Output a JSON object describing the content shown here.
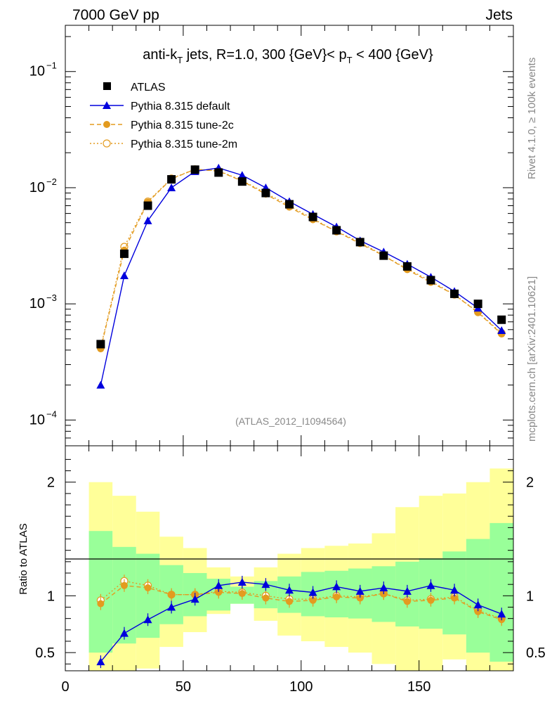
{
  "header": {
    "left": "7000 GeV pp",
    "right": "Jets"
  },
  "side_labels": {
    "rivet": "Rivet 4.1.0, ≥ 100k events",
    "mcplots": "mcplots.cern.ch [arXiv:2401.10621]"
  },
  "watermark": "(ATLAS_2012_I1094564)",
  "colors": {
    "atlas": "#000000",
    "default": "#0000dd",
    "tune": "#e39b1f",
    "band_green": "#99ff99",
    "band_yellow": "#ffff99"
  },
  "chart_data": [
    {
      "type": "line",
      "panel": "main",
      "title": {
        "prefix": "anti-k",
        "prefix_sub": "T",
        "middle": " jets, R=1.0, 300 {GeV}< p",
        "middle_sub": "T",
        "suffix": " < 400 {GeV}"
      },
      "yscale": "log",
      "ylim": [
        6e-05,
        0.25
      ],
      "xlim": [
        0,
        190
      ],
      "y_ticks": [
        {
          "value": 0.1,
          "base": "10",
          "exp": "−1"
        },
        {
          "value": 0.01,
          "base": "10",
          "exp": "−2"
        },
        {
          "value": 0.001,
          "base": "10",
          "exp": "−3"
        },
        {
          "value": 0.0001,
          "base": "10",
          "exp": "−4"
        }
      ],
      "legend": [
        {
          "key": "atlas",
          "label": "ATLAS"
        },
        {
          "key": "default",
          "label": "Pythia 8.315 default"
        },
        {
          "key": "tune2c",
          "label": "Pythia 8.315 tune-2c"
        },
        {
          "key": "tune2m",
          "label": "Pythia 8.315 tune-2m"
        }
      ],
      "x": [
        15,
        25,
        35,
        45,
        55,
        65,
        75,
        85,
        95,
        105,
        115,
        125,
        135,
        145,
        155,
        165,
        175,
        185
      ],
      "series": [
        {
          "key": "atlas",
          "name": "ATLAS",
          "values": [
            0.00045,
            0.0027,
            0.007,
            0.0118,
            0.0143,
            0.0135,
            0.0113,
            0.009,
            0.0072,
            0.0056,
            0.0043,
            0.0034,
            0.0026,
            0.0021,
            0.0016,
            0.00122,
            0.001,
            0.00073
          ]
        },
        {
          "key": "default",
          "name": "Pythia 8.315 default",
          "values": [
            0.0002,
            0.00175,
            0.0052,
            0.01,
            0.0138,
            0.0148,
            0.0128,
            0.01,
            0.0076,
            0.0059,
            0.0046,
            0.0035,
            0.0028,
            0.0022,
            0.0017,
            0.00128,
            0.00092,
            0.00059
          ]
        },
        {
          "key": "tune2c",
          "name": "Pythia 8.315 tune-2c",
          "values": [
            0.00041,
            0.0029,
            0.0075,
            0.0119,
            0.0144,
            0.0139,
            0.0114,
            0.0088,
            0.0068,
            0.0053,
            0.0042,
            0.0033,
            0.0026,
            0.00197,
            0.00153,
            0.0012,
            0.00084,
            0.00055
          ]
        },
        {
          "key": "tune2m",
          "name": "Pythia 8.315 tune-2m",
          "values": [
            0.00042,
            0.0031,
            0.0076,
            0.012,
            0.0144,
            0.014,
            0.0115,
            0.009,
            0.007,
            0.0054,
            0.0042,
            0.0034,
            0.0026,
            0.002,
            0.00157,
            0.0012,
            0.00085,
            0.00056
          ]
        }
      ]
    },
    {
      "type": "line",
      "panel": "ratio",
      "ylabel": "Ratio to ATLAS",
      "ylim": [
        0.34,
        2.32
      ],
      "xlim": [
        0,
        190
      ],
      "y_ticks": [
        0.5,
        1,
        2
      ],
      "y_tick_labels": [
        "0.5",
        "1",
        "2"
      ],
      "x_ticks": [
        0,
        50,
        100,
        150
      ],
      "x_tick_labels": [
        "0",
        "50",
        "100",
        "150"
      ],
      "bin_edges": [
        10,
        20,
        30,
        40,
        50,
        60,
        70,
        80,
        90,
        100,
        110,
        120,
        130,
        140,
        150,
        160,
        170,
        180,
        190
      ],
      "band_green": [
        [
          0.5,
          1.57
        ],
        [
          0.58,
          1.43
        ],
        [
          0.63,
          1.37
        ],
        [
          0.75,
          1.27
        ],
        [
          0.82,
          1.2
        ],
        [
          0.87,
          1.15
        ],
        [
          0.93,
          1.08
        ],
        [
          0.89,
          1.13
        ],
        [
          0.85,
          1.17
        ],
        [
          0.82,
          1.21
        ],
        [
          0.81,
          1.22
        ],
        [
          0.8,
          1.24
        ],
        [
          0.77,
          1.26
        ],
        [
          0.73,
          1.3
        ],
        [
          0.71,
          1.33
        ],
        [
          0.66,
          1.39
        ],
        [
          0.5,
          1.5
        ],
        [
          0.42,
          1.64
        ]
      ],
      "band_yellow": [
        [
          0.34,
          2.0
        ],
        [
          0.34,
          1.88
        ],
        [
          0.36,
          1.74
        ],
        [
          0.55,
          1.52
        ],
        [
          0.68,
          1.42
        ],
        [
          0.84,
          1.25
        ],
        [
          0.93,
          1.17
        ],
        [
          0.78,
          1.25
        ],
        [
          0.65,
          1.37
        ],
        [
          0.6,
          1.42
        ],
        [
          0.55,
          1.44
        ],
        [
          0.5,
          1.46
        ],
        [
          0.4,
          1.55
        ],
        [
          0.34,
          1.78
        ],
        [
          0.34,
          1.88
        ],
        [
          0.44,
          1.9
        ],
        [
          0.34,
          2.0
        ],
        [
          0.34,
          2.12
        ]
      ],
      "x": [
        15,
        25,
        35,
        45,
        55,
        65,
        75,
        85,
        95,
        105,
        115,
        125,
        135,
        145,
        155,
        165,
        175,
        185
      ],
      "series": [
        {
          "key": "default",
          "name": "Pythia 8.315 default",
          "values": [
            0.42,
            0.67,
            0.79,
            0.9,
            0.97,
            1.09,
            1.12,
            1.1,
            1.05,
            1.03,
            1.08,
            1.04,
            1.07,
            1.04,
            1.09,
            1.05,
            0.92,
            0.84
          ]
        },
        {
          "key": "tune2c",
          "name": "Pythia 8.315 tune-2c",
          "values": [
            0.93,
            1.09,
            1.07,
            1.01,
            1.01,
            1.03,
            1.02,
            0.98,
            0.95,
            0.96,
            0.99,
            0.98,
            1.02,
            0.95,
            0.96,
            0.98,
            0.86,
            0.79
          ]
        },
        {
          "key": "tune2m",
          "name": "Pythia 8.315 tune-2m",
          "values": [
            0.96,
            1.13,
            1.09,
            1.01,
            1.01,
            1.04,
            1.03,
            1.0,
            0.97,
            0.97,
            1.0,
            0.99,
            1.02,
            0.96,
            0.97,
            0.99,
            0.87,
            0.8
          ]
        }
      ]
    }
  ]
}
